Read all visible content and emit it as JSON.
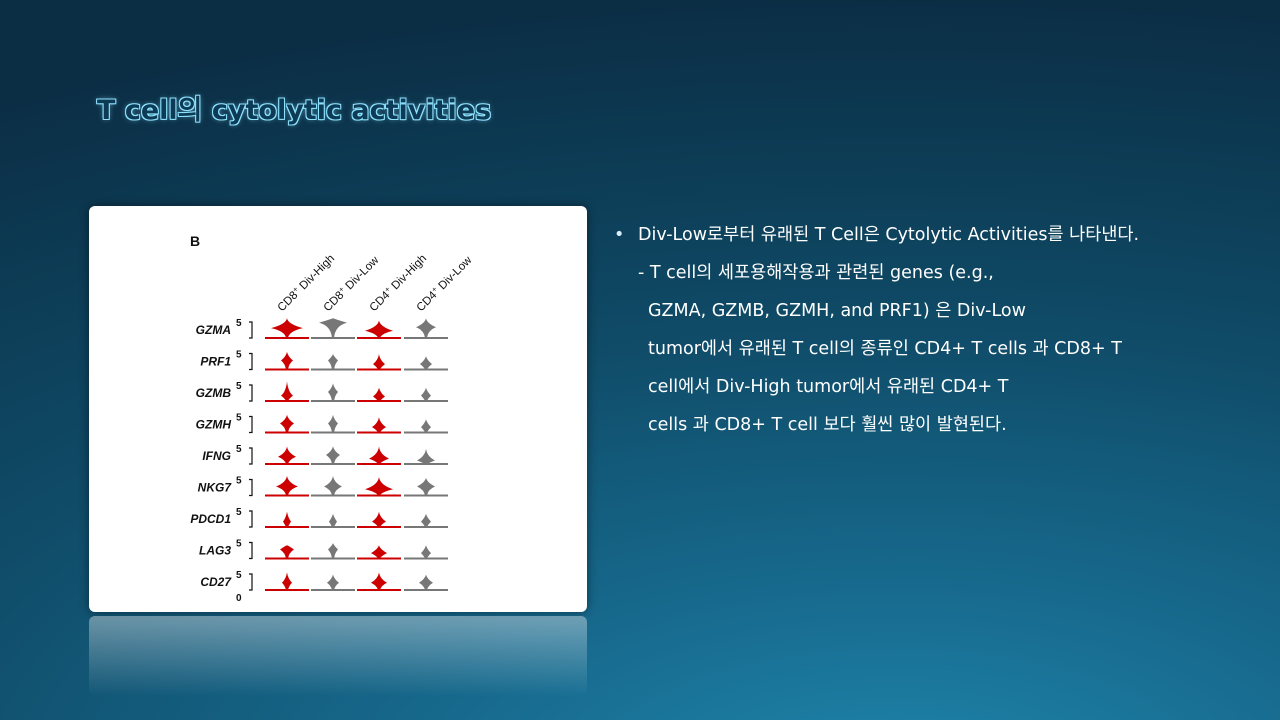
{
  "title": "T cell의 cytolytic activities",
  "figure": {
    "panel_label": "B",
    "columns": [
      "CD8+ Div-High",
      "CD8+ Div-Low",
      "CD4+ Div-High",
      "CD4+ Div-Low"
    ],
    "genes": [
      "GZMA",
      "PRF1",
      "GZMB",
      "GZMH",
      "IFNG",
      "NKG7",
      "PDCD1",
      "LAG3",
      "CD27"
    ],
    "scale_top": "5",
    "scale_bottom": "0",
    "colors": {
      "red": "#cc0000",
      "gray": "#777777"
    }
  },
  "bullet": {
    "main": "Div-Low로부터 유래된 T Cell은 Cytolytic Activities를 나타낸다.",
    "sub_lines": [
      "- T cell의 세포용해작용과 관련된 genes (e.g.,",
      "GZMA, GZMB, GZMH, and PRF1) 은 Div-Low",
      "tumor에서 유래된 T cell의 종류인 CD4+ T cells 과 CD8+ T",
      "cell에서 Div-High tumor에서 유래된 CD4+ T",
      "cells 과 CD8+ T cell 보다 훨씬 많이 발현된다."
    ]
  }
}
